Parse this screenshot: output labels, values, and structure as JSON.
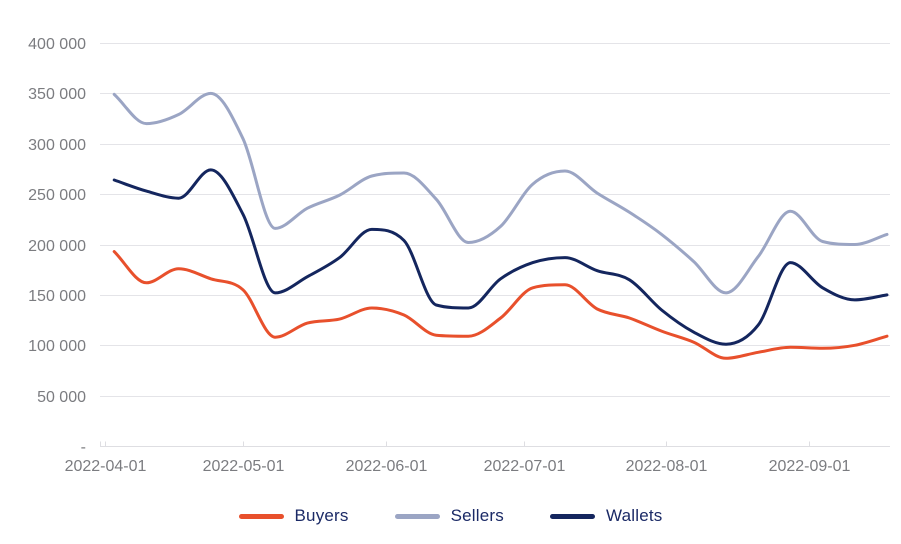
{
  "chart_data": {
    "type": "line",
    "title": "",
    "xlabel": "",
    "ylabel": "",
    "grid": true,
    "legend_position": "bottom",
    "y_axis": {
      "min": 0,
      "max": 400000,
      "tick_values": [
        400000,
        350000,
        300000,
        250000,
        200000,
        150000,
        100000,
        50000,
        0
      ],
      "tick_labels": [
        "400 000",
        "350 000",
        "300 000",
        "250 000",
        "200 000",
        "150 000",
        "100 000",
        "50 000",
        "-"
      ]
    },
    "x_axis": {
      "tick_dates": [
        "2022-04-01",
        "2022-05-01",
        "2022-06-01",
        "2022-07-01",
        "2022-08-01",
        "2022-09-01"
      ],
      "tick_labels": [
        "2022-04-01",
        "2022-05-01",
        "2022-06-01",
        "2022-07-01",
        "2022-08-01",
        "2022-09-01"
      ]
    },
    "x": [
      "2022-04-03",
      "2022-04-10",
      "2022-04-17",
      "2022-04-24",
      "2022-05-01",
      "2022-05-08",
      "2022-05-15",
      "2022-05-22",
      "2022-05-29",
      "2022-06-05",
      "2022-06-12",
      "2022-06-19",
      "2022-06-26",
      "2022-07-03",
      "2022-07-10",
      "2022-07-17",
      "2022-07-24",
      "2022-07-31",
      "2022-08-07",
      "2022-08-14",
      "2022-08-21",
      "2022-08-28",
      "2022-09-04",
      "2022-09-11",
      "2022-09-18"
    ],
    "series": [
      {
        "name": "Buyers",
        "color": "#E8502C",
        "values": [
          193000,
          162000,
          176000,
          166000,
          155000,
          108000,
          122000,
          126000,
          137000,
          130000,
          110000,
          109000,
          127000,
          157000,
          160000,
          136000,
          127000,
          114000,
          103000,
          87000,
          93000,
          98000,
          97000,
          100000,
          109000
        ]
      },
      {
        "name": "Sellers",
        "color": "#9BA5C4",
        "values": [
          349000,
          320000,
          329000,
          350000,
          305000,
          216000,
          236000,
          249000,
          268000,
          271000,
          245000,
          202000,
          218000,
          260000,
          273000,
          251000,
          232000,
          210000,
          183000,
          152000,
          188000,
          233000,
          203000,
          200000,
          210000
        ]
      },
      {
        "name": "Wallets",
        "color": "#14265E",
        "values": [
          264000,
          253000,
          246000,
          274000,
          230000,
          152000,
          168000,
          187000,
          215000,
          204000,
          140000,
          137000,
          166000,
          182000,
          187000,
          174000,
          165000,
          135000,
          113000,
          101000,
          120000,
          182000,
          157000,
          145000,
          150000
        ]
      }
    ],
    "colors": {
      "gridline": "#e4e4e8",
      "axis_line": "#dedee2",
      "axis_text": "#7b7c80",
      "legend_text": "#1b2a66"
    }
  }
}
